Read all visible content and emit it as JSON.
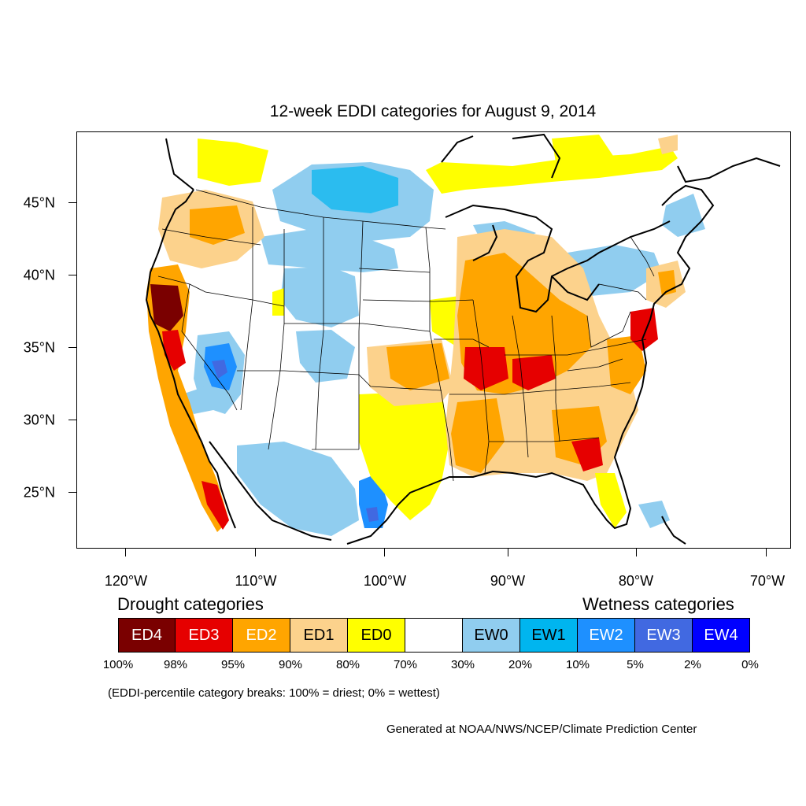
{
  "title": "12-week EDDI categories for August 9, 2014",
  "lat_labels": [
    "45°N",
    "40°N",
    "35°N",
    "30°N",
    "25°N"
  ],
  "lon_labels": [
    "120°W",
    "110°W",
    "100°W",
    "90°W",
    "80°W",
    "70°W"
  ],
  "legend": {
    "drought_heading": "Drought categories",
    "wetness_heading": "Wetness categories",
    "categories": [
      {
        "label": "ED4",
        "color": "#7a0000",
        "text_color": "#ffffff"
      },
      {
        "label": "ED3",
        "color": "#e60000",
        "text_color": "#ffffff"
      },
      {
        "label": "ED2",
        "color": "#ffa500",
        "text_color": "#ffffff"
      },
      {
        "label": "ED1",
        "color": "#fcd28c",
        "text_color": "#000000"
      },
      {
        "label": "ED0",
        "color": "#ffff00",
        "text_color": "#000000"
      },
      {
        "label": "",
        "color": "#ffffff",
        "text_color": "#000000"
      },
      {
        "label": "EW0",
        "color": "#90cdef",
        "text_color": "#000000"
      },
      {
        "label": "EW1",
        "color": "#00b5ef",
        "text_color": "#000000"
      },
      {
        "label": "EW2",
        "color": "#1e90ff",
        "text_color": "#ffffff"
      },
      {
        "label": "EW3",
        "color": "#4169e1",
        "text_color": "#ffffff"
      },
      {
        "label": "EW4",
        "color": "#0000ff",
        "text_color": "#ffffff"
      }
    ],
    "breaks": [
      "100%",
      "98%",
      "95%",
      "90%",
      "80%",
      "70%",
      "30%",
      "20%",
      "10%",
      "5%",
      "2%",
      "0%"
    ]
  },
  "note": "(EDDI-percentile category breaks: 100% = driest; 0% = wettest)",
  "credit": "Generated at NOAA/NWS/NCEP/Climate Prediction Center"
}
